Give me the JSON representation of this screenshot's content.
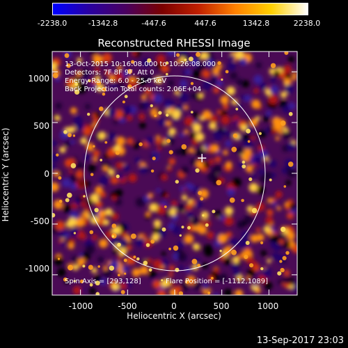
{
  "colorbar": {
    "ticks": [
      "-2238.0",
      "-1342.8",
      "-447.6",
      "447.6",
      "1342.8",
      "2238.0"
    ],
    "range": [
      -2238.0,
      2238.0
    ],
    "colors": [
      "#0000ff",
      "#2a00a0",
      "#4a0060",
      "#7a0000",
      "#c02000",
      "#ff8000",
      "#ffd000",
      "#ffffff"
    ]
  },
  "title": "Reconstructed RHESSI Image",
  "annotations": {
    "time": "13-Oct-2015 10:16:08.000 to 10:26:08.000",
    "detectors": "Detectors: 7F 8F 9F, Att 0",
    "energy": "Energy Range: 6.0 - 25.0 keV",
    "method": "Back Projection   Total counts: 2.06E+04",
    "spin_axis": "Spin Axis = [293,128]",
    "flare_position": "Flare Position = [-1112,1089]"
  },
  "chart_data": {
    "type": "heatmap",
    "title": "Reconstructed RHESSI Image",
    "xlabel": "Heliocentric X (arcsec)",
    "ylabel": "Heliocentric Y (arcsec)",
    "xlim": [
      -1300,
      1300
    ],
    "ylim": [
      -1200,
      1200
    ],
    "xticks": [
      "-1000",
      "-500",
      "0",
      "500",
      "1000"
    ],
    "yticks": [
      "1000",
      "500",
      "0",
      "-500",
      "-1000"
    ],
    "solar_limb": {
      "center": [
        0,
        0
      ],
      "radius": 960
    },
    "marker": {
      "x": 290,
      "y": 150
    },
    "value_range": [
      -2238.0,
      2238.0
    ]
  },
  "footer_date": "13-Sep-2017 23:03"
}
